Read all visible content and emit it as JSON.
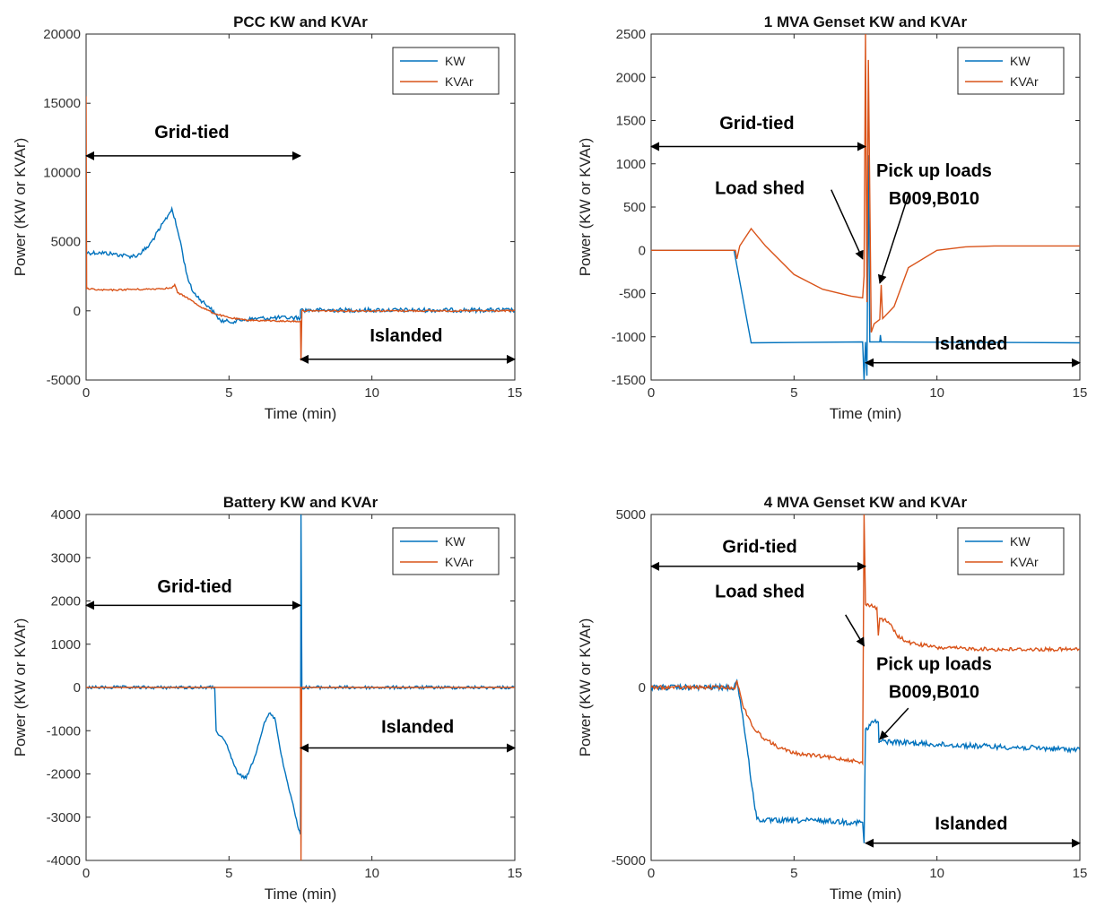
{
  "colors": {
    "kw": "#0072BD",
    "kvar": "#D95319"
  },
  "chart_data": [
    {
      "type": "line",
      "title": "PCC KW and KVAr",
      "xlabel": "Time (min)",
      "ylabel": "Power (KW or KVAr)",
      "xlim": [
        0,
        15
      ],
      "ylim": [
        -5000,
        20000
      ],
      "xticks": [
        0,
        5,
        10,
        15
      ],
      "yticks": [
        -5000,
        0,
        5000,
        10000,
        15000,
        20000
      ],
      "legend": {
        "position": "top-right",
        "entries": [
          "KW",
          "KVAr"
        ]
      },
      "series": [
        {
          "name": "KW",
          "color": "#0072BD",
          "noise": 0.8,
          "points": [
            [
              0,
              4200
            ],
            [
              0.5,
              4200
            ],
            [
              1,
              4100
            ],
            [
              1.5,
              3950
            ],
            [
              1.8,
              4000
            ],
            [
              2.2,
              4700
            ],
            [
              2.6,
              6000
            ],
            [
              2.9,
              7000
            ],
            [
              3.0,
              7400
            ],
            [
              3.3,
              5000
            ],
            [
              3.5,
              2800
            ],
            [
              3.7,
              1500
            ],
            [
              4.0,
              800
            ],
            [
              4.3,
              300
            ],
            [
              4.5,
              -200
            ],
            [
              4.7,
              -700
            ],
            [
              5.0,
              -800
            ],
            [
              5.5,
              -650
            ],
            [
              6.0,
              -550
            ],
            [
              6.5,
              -520
            ],
            [
              7.0,
              -500
            ],
            [
              7.5,
              -500
            ],
            [
              7.5,
              50
            ],
            [
              15,
              50
            ]
          ]
        },
        {
          "name": "KVAr",
          "color": "#D95319",
          "noise": 0.3,
          "points": [
            [
              0,
              15500
            ],
            [
              0.02,
              1600
            ],
            [
              0.5,
              1500
            ],
            [
              1,
              1500
            ],
            [
              1.5,
              1550
            ],
            [
              2,
              1550
            ],
            [
              2.5,
              1600
            ],
            [
              3,
              1650
            ],
            [
              3.1,
              1900
            ],
            [
              3.2,
              1300
            ],
            [
              3.5,
              1000
            ],
            [
              4,
              300
            ],
            [
              4.5,
              -200
            ],
            [
              5,
              -500
            ],
            [
              5.5,
              -650
            ],
            [
              6,
              -700
            ],
            [
              6.5,
              -720
            ],
            [
              7,
              -750
            ],
            [
              7.5,
              -750
            ],
            [
              7.52,
              -3600
            ],
            [
              7.55,
              0
            ],
            [
              15,
              0
            ]
          ]
        }
      ],
      "annotations": [
        {
          "text": "Grid-tied",
          "arrow_x": [
            0,
            7.5
          ],
          "arrow_y": 11200,
          "label_x": 3.7,
          "label_y": 12500
        },
        {
          "text": "Islanded",
          "arrow_x": [
            7.5,
            15
          ],
          "arrow_y": -3500,
          "label_x": 11.2,
          "label_y": -2200
        }
      ]
    },
    {
      "type": "line",
      "title": "1 MVA Genset KW and KVAr",
      "xlabel": "Time (min)",
      "ylabel": "Power (KW or KVAr)",
      "xlim": [
        0,
        15
      ],
      "ylim": [
        -1500,
        2500
      ],
      "xticks": [
        0,
        5,
        10,
        15
      ],
      "yticks": [
        -1500,
        -1000,
        -500,
        0,
        500,
        1000,
        1500,
        2000,
        2500
      ],
      "legend": {
        "position": "top-right",
        "entries": [
          "KW",
          "KVAr"
        ]
      },
      "series": [
        {
          "name": "KW",
          "color": "#0072BD",
          "noise": 0,
          "points": [
            [
              0,
              0
            ],
            [
              2.9,
              0
            ],
            [
              3.5,
              -1070
            ],
            [
              7.4,
              -1060
            ],
            [
              7.45,
              -1500
            ],
            [
              7.5,
              -1060
            ],
            [
              7.55,
              -1450
            ],
            [
              7.6,
              1100
            ],
            [
              7.65,
              -1060
            ],
            [
              8.0,
              -1060
            ],
            [
              8.02,
              -980
            ],
            [
              8.05,
              -1060
            ],
            [
              15,
              -1070
            ]
          ]
        },
        {
          "name": "KVAr",
          "color": "#D95319",
          "noise": 0,
          "points": [
            [
              0,
              0
            ],
            [
              2.95,
              0
            ],
            [
              3.0,
              -100
            ],
            [
              3.1,
              50
            ],
            [
              3.5,
              250
            ],
            [
              4,
              50
            ],
            [
              5,
              -280
            ],
            [
              6,
              -450
            ],
            [
              7,
              -530
            ],
            [
              7.4,
              -550
            ],
            [
              7.45,
              -300
            ],
            [
              7.5,
              2500
            ],
            [
              7.55,
              -600
            ],
            [
              7.6,
              2200
            ],
            [
              7.7,
              -950
            ],
            [
              7.8,
              -850
            ],
            [
              8.0,
              -800
            ],
            [
              8.05,
              -400
            ],
            [
              8.1,
              -790
            ],
            [
              8.5,
              -650
            ],
            [
              9,
              -200
            ],
            [
              10,
              0
            ],
            [
              11,
              40
            ],
            [
              12,
              50
            ],
            [
              15,
              50
            ]
          ]
        }
      ],
      "annotations": [
        {
          "text": "Grid-tied",
          "arrow_x": [
            0,
            7.5
          ],
          "arrow_y": 1200,
          "label_x": 3.7,
          "label_y": 1400
        },
        {
          "text": "Load shed",
          "label_x": 3.8,
          "label_y": 650,
          "arrow_from": [
            6.3,
            700
          ],
          "arrow_to": [
            7.4,
            -100
          ]
        },
        {
          "text": "Pick up loads",
          "label_x": 9.9,
          "label_y": 850
        },
        {
          "text": "B009,B010",
          "label_x": 9.9,
          "label_y": 530,
          "arrow_from": [
            9.0,
            640
          ],
          "arrow_to": [
            8.0,
            -380
          ]
        },
        {
          "text": "Islanded",
          "arrow_x": [
            7.5,
            15
          ],
          "arrow_y": -1300,
          "label_x": 11.2,
          "label_y": -1150
        }
      ]
    },
    {
      "type": "line",
      "title": "Battery KW and KVAr",
      "xlabel": "Time (min)",
      "ylabel": "Power (KW or KVAr)",
      "xlim": [
        0,
        15
      ],
      "ylim": [
        -4000,
        4000
      ],
      "xticks": [
        0,
        5,
        10,
        15
      ],
      "yticks": [
        -4000,
        -3000,
        -2000,
        -1000,
        0,
        1000,
        2000,
        3000,
        4000
      ],
      "legend": {
        "position": "top-right",
        "entries": [
          "KW",
          "KVAr"
        ]
      },
      "series": [
        {
          "name": "KW",
          "color": "#0072BD",
          "noise": 0.6,
          "points": [
            [
              0,
              0
            ],
            [
              3,
              0
            ],
            [
              4.5,
              0
            ],
            [
              4.55,
              -1000
            ],
            [
              4.9,
              -1300
            ],
            [
              5.3,
              -2000
            ],
            [
              5.6,
              -2100
            ],
            [
              5.9,
              -1600
            ],
            [
              6.2,
              -900
            ],
            [
              6.4,
              -600
            ],
            [
              6.6,
              -700
            ],
            [
              6.9,
              -1800
            ],
            [
              7.2,
              -2600
            ],
            [
              7.4,
              -3200
            ],
            [
              7.5,
              -3400
            ],
            [
              7.52,
              4000
            ],
            [
              7.55,
              0
            ],
            [
              15,
              0
            ]
          ]
        },
        {
          "name": "KVAr",
          "color": "#D95319",
          "noise": 0,
          "points": [
            [
              0,
              0
            ],
            [
              7.5,
              0
            ],
            [
              7.52,
              -4000
            ],
            [
              7.54,
              0
            ],
            [
              15,
              0
            ]
          ]
        }
      ],
      "annotations": [
        {
          "text": "Grid-tied",
          "arrow_x": [
            0,
            7.5
          ],
          "arrow_y": 1900,
          "label_x": 3.8,
          "label_y": 2200
        },
        {
          "text": "Islanded",
          "arrow_x": [
            7.5,
            15
          ],
          "arrow_y": -1400,
          "label_x": 11.6,
          "label_y": -1050
        }
      ]
    },
    {
      "type": "line",
      "title": "4 MVA Genset KW and KVAr",
      "xlabel": "Time (min)",
      "ylabel": "Power (KW or KVAr)",
      "xlim": [
        0,
        15
      ],
      "ylim": [
        -5000,
        5000
      ],
      "xticks": [
        0,
        5,
        10,
        15
      ],
      "yticks": [
        -5000,
        0,
        5000
      ],
      "legend": {
        "position": "top-right",
        "entries": [
          "KW",
          "KVAr"
        ]
      },
      "series": [
        {
          "name": "KW",
          "color": "#0072BD",
          "noise": 1.0,
          "points": [
            [
              0,
              0
            ],
            [
              2.9,
              0
            ],
            [
              3.0,
              200
            ],
            [
              3.2,
              -800
            ],
            [
              3.6,
              -3300
            ],
            [
              3.7,
              -3800
            ],
            [
              4,
              -3850
            ],
            [
              5,
              -3850
            ],
            [
              6,
              -3850
            ],
            [
              7,
              -3900
            ],
            [
              7.4,
              -3900
            ],
            [
              7.45,
              -4500
            ],
            [
              7.5,
              -1200
            ],
            [
              7.6,
              -1200
            ],
            [
              7.7,
              -1000
            ],
            [
              7.95,
              -1000
            ],
            [
              7.97,
              -1600
            ],
            [
              8.0,
              -1550
            ],
            [
              10,
              -1650
            ],
            [
              15,
              -1800
            ]
          ]
        },
        {
          "name": "KVAr",
          "color": "#D95319",
          "noise": 0.7,
          "points": [
            [
              0,
              0
            ],
            [
              2.95,
              0
            ],
            [
              3.0,
              200
            ],
            [
              3.2,
              -500
            ],
            [
              3.6,
              -1200
            ],
            [
              4,
              -1500
            ],
            [
              4.5,
              -1750
            ],
            [
              5,
              -1900
            ],
            [
              6,
              -2000
            ],
            [
              7,
              -2100
            ],
            [
              7.4,
              -2200
            ],
            [
              7.45,
              5000
            ],
            [
              7.5,
              2400
            ],
            [
              7.6,
              2400
            ],
            [
              7.9,
              2300
            ],
            [
              7.95,
              1500
            ],
            [
              8.0,
              2000
            ],
            [
              8.3,
              1900
            ],
            [
              8.6,
              1500
            ],
            [
              9,
              1300
            ],
            [
              10,
              1150
            ],
            [
              12,
              1100
            ],
            [
              15,
              1100
            ]
          ]
        }
      ],
      "annotations": [
        {
          "text": "Grid-tied",
          "arrow_x": [
            0,
            7.5
          ],
          "arrow_y": 3500,
          "label_x": 3.8,
          "label_y": 3900
        },
        {
          "text": "Load shed",
          "label_x": 3.8,
          "label_y": 2600,
          "arrow_from": [
            6.8,
            2100
          ],
          "arrow_to": [
            7.45,
            1200
          ]
        },
        {
          "text": "Pick up loads",
          "label_x": 9.9,
          "label_y": 500
        },
        {
          "text": "B009,B010",
          "label_x": 9.9,
          "label_y": -300,
          "arrow_from": [
            9.0,
            -600
          ],
          "arrow_to": [
            8.0,
            -1500
          ]
        },
        {
          "text": "Islanded",
          "arrow_x": [
            7.5,
            15
          ],
          "arrow_y": -4500,
          "label_x": 11.2,
          "label_y": -4100
        }
      ]
    }
  ]
}
